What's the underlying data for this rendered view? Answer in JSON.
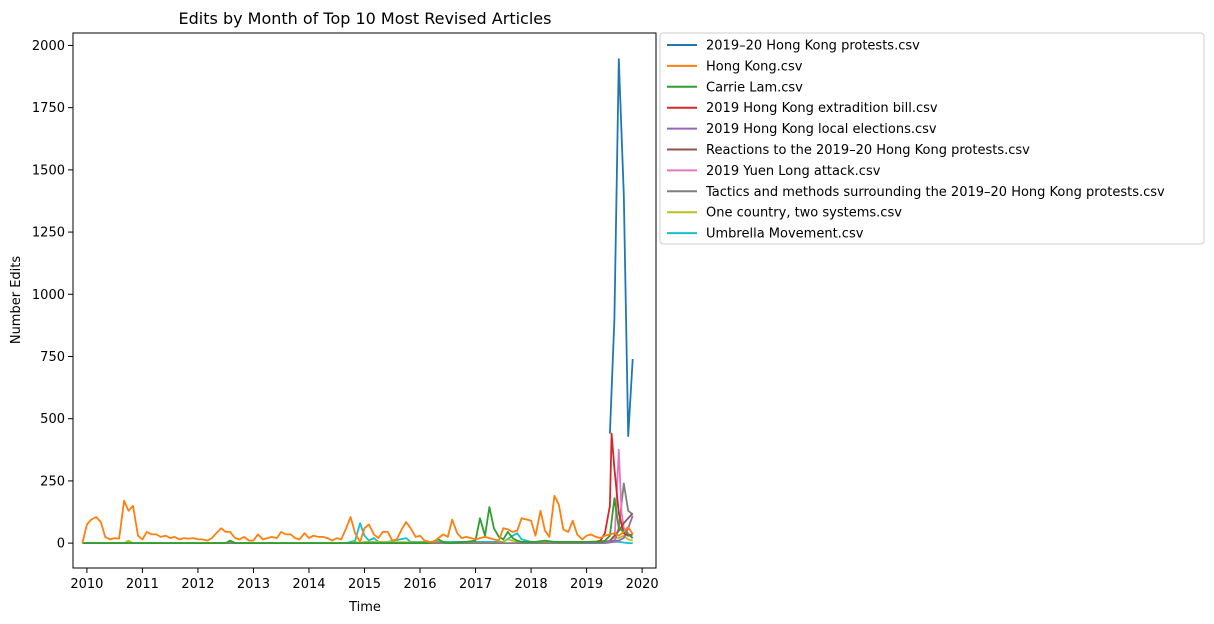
{
  "chart_data": {
    "type": "line",
    "title": "Edits by Month of Top 10 Most Revised Articles",
    "xlabel": "Time",
    "ylabel": "Number Edits",
    "xlim": [
      2009.75,
      2020.25
    ],
    "ylim": [
      -100,
      2050
    ],
    "x_ticks": [
      2010,
      2011,
      2012,
      2013,
      2014,
      2015,
      2016,
      2017,
      2018,
      2019,
      2020
    ],
    "y_ticks": [
      0,
      250,
      500,
      750,
      1000,
      1250,
      1500,
      1750,
      2000
    ],
    "grid": false,
    "legend_position": "outside-right",
    "series": [
      {
        "name": "2019–20 Hong Kong protests.csv",
        "color": "#1f77b4",
        "points": [
          [
            2019.42,
            440
          ],
          [
            2019.5,
            900
          ],
          [
            2019.58,
            1945
          ],
          [
            2019.67,
            1400
          ],
          [
            2019.75,
            430
          ],
          [
            2019.83,
            740
          ]
        ]
      },
      {
        "name": "Hong Kong.csv",
        "color": "#ff7f0e",
        "points": [
          [
            2009.92,
            0
          ],
          [
            2010.0,
            75
          ],
          [
            2010.08,
            95
          ],
          [
            2010.17,
            105
          ],
          [
            2010.25,
            85
          ],
          [
            2010.33,
            25
          ],
          [
            2010.42,
            15
          ],
          [
            2010.5,
            20
          ],
          [
            2010.58,
            18
          ],
          [
            2010.67,
            170
          ],
          [
            2010.75,
            130
          ],
          [
            2010.83,
            150
          ],
          [
            2010.92,
            30
          ],
          [
            2011.0,
            15
          ],
          [
            2011.08,
            45
          ],
          [
            2011.17,
            35
          ],
          [
            2011.25,
            35
          ],
          [
            2011.33,
            25
          ],
          [
            2011.42,
            30
          ],
          [
            2011.5,
            20
          ],
          [
            2011.58,
            25
          ],
          [
            2011.67,
            15
          ],
          [
            2011.75,
            20
          ],
          [
            2011.83,
            18
          ],
          [
            2011.92,
            20
          ],
          [
            2012.0,
            15
          ],
          [
            2012.08,
            15
          ],
          [
            2012.17,
            10
          ],
          [
            2012.25,
            20
          ],
          [
            2012.33,
            40
          ],
          [
            2012.42,
            60
          ],
          [
            2012.5,
            45
          ],
          [
            2012.58,
            45
          ],
          [
            2012.67,
            20
          ],
          [
            2012.75,
            15
          ],
          [
            2012.83,
            25
          ],
          [
            2012.92,
            10
          ],
          [
            2013.0,
            10
          ],
          [
            2013.08,
            35
          ],
          [
            2013.17,
            15
          ],
          [
            2013.25,
            20
          ],
          [
            2013.33,
            25
          ],
          [
            2013.42,
            20
          ],
          [
            2013.5,
            45
          ],
          [
            2013.58,
            35
          ],
          [
            2013.67,
            35
          ],
          [
            2013.75,
            20
          ],
          [
            2013.83,
            15
          ],
          [
            2013.92,
            40
          ],
          [
            2014.0,
            20
          ],
          [
            2014.08,
            30
          ],
          [
            2014.17,
            25
          ],
          [
            2014.25,
            25
          ],
          [
            2014.33,
            20
          ],
          [
            2014.42,
            10
          ],
          [
            2014.5,
            20
          ],
          [
            2014.58,
            15
          ],
          [
            2014.67,
            60
          ],
          [
            2014.75,
            105
          ],
          [
            2014.83,
            40
          ],
          [
            2014.92,
            5
          ],
          [
            2015.0,
            60
          ],
          [
            2015.08,
            75
          ],
          [
            2015.17,
            35
          ],
          [
            2015.25,
            20
          ],
          [
            2015.33,
            45
          ],
          [
            2015.42,
            45
          ],
          [
            2015.5,
            10
          ],
          [
            2015.58,
            15
          ],
          [
            2015.67,
            55
          ],
          [
            2015.75,
            85
          ],
          [
            2015.83,
            60
          ],
          [
            2015.92,
            25
          ],
          [
            2016.0,
            30
          ],
          [
            2016.08,
            10
          ],
          [
            2016.17,
            5
          ],
          [
            2016.25,
            5
          ],
          [
            2016.33,
            20
          ],
          [
            2016.42,
            35
          ],
          [
            2016.5,
            25
          ],
          [
            2016.58,
            95
          ],
          [
            2016.67,
            40
          ],
          [
            2016.75,
            20
          ],
          [
            2016.83,
            25
          ],
          [
            2016.92,
            20
          ],
          [
            2017.0,
            15
          ],
          [
            2017.08,
            20
          ],
          [
            2017.17,
            25
          ],
          [
            2017.25,
            20
          ],
          [
            2017.33,
            15
          ],
          [
            2017.42,
            10
          ],
          [
            2017.5,
            60
          ],
          [
            2017.58,
            55
          ],
          [
            2017.67,
            45
          ],
          [
            2017.75,
            50
          ],
          [
            2017.83,
            100
          ],
          [
            2017.92,
            95
          ],
          [
            2018.0,
            90
          ],
          [
            2018.08,
            30
          ],
          [
            2018.17,
            130
          ],
          [
            2018.25,
            50
          ],
          [
            2018.33,
            25
          ],
          [
            2018.42,
            190
          ],
          [
            2018.5,
            155
          ],
          [
            2018.58,
            55
          ],
          [
            2018.67,
            45
          ],
          [
            2018.75,
            90
          ],
          [
            2018.83,
            35
          ],
          [
            2018.92,
            15
          ],
          [
            2019.0,
            30
          ],
          [
            2019.08,
            35
          ],
          [
            2019.17,
            25
          ],
          [
            2019.25,
            20
          ],
          [
            2019.33,
            30
          ],
          [
            2019.42,
            35
          ],
          [
            2019.5,
            40
          ],
          [
            2019.58,
            30
          ],
          [
            2019.67,
            45
          ],
          [
            2019.75,
            65
          ],
          [
            2019.83,
            35
          ]
        ]
      },
      {
        "name": "Carrie Lam.csv",
        "color": "#2ca02c",
        "points": [
          [
            2009.92,
            0
          ],
          [
            2012.5,
            0
          ],
          [
            2012.58,
            10
          ],
          [
            2012.67,
            0
          ],
          [
            2016.17,
            0
          ],
          [
            2016.33,
            15
          ],
          [
            2016.42,
            5
          ],
          [
            2016.5,
            0
          ],
          [
            2016.83,
            5
          ],
          [
            2017.0,
            10
          ],
          [
            2017.08,
            100
          ],
          [
            2017.17,
            30
          ],
          [
            2017.25,
            145
          ],
          [
            2017.33,
            60
          ],
          [
            2017.42,
            25
          ],
          [
            2017.5,
            15
          ],
          [
            2017.58,
            45
          ],
          [
            2017.67,
            20
          ],
          [
            2017.75,
            10
          ],
          [
            2017.83,
            5
          ],
          [
            2017.92,
            5
          ],
          [
            2018.0,
            5
          ],
          [
            2018.08,
            5
          ],
          [
            2018.25,
            10
          ],
          [
            2018.42,
            5
          ],
          [
            2018.58,
            5
          ],
          [
            2018.75,
            5
          ],
          [
            2019.0,
            5
          ],
          [
            2019.25,
            5
          ],
          [
            2019.33,
            10
          ],
          [
            2019.42,
            30
          ],
          [
            2019.5,
            180
          ],
          [
            2019.58,
            60
          ],
          [
            2019.67,
            45
          ],
          [
            2019.75,
            35
          ],
          [
            2019.83,
            20
          ]
        ]
      },
      {
        "name": "2019 Hong Kong extradition bill.csv",
        "color": "#d62728",
        "points": [
          [
            2019.17,
            5
          ],
          [
            2019.25,
            10
          ],
          [
            2019.33,
            40
          ],
          [
            2019.42,
            150
          ],
          [
            2019.45,
            440
          ],
          [
            2019.5,
            300
          ],
          [
            2019.58,
            120
          ],
          [
            2019.67,
            40
          ],
          [
            2019.75,
            30
          ],
          [
            2019.83,
            35
          ]
        ]
      },
      {
        "name": "2019 Hong Kong local elections.csv",
        "color": "#9467bd",
        "points": [
          [
            2018.92,
            0
          ],
          [
            2019.17,
            2
          ],
          [
            2019.33,
            5
          ],
          [
            2019.5,
            10
          ],
          [
            2019.58,
            10
          ],
          [
            2019.67,
            20
          ],
          [
            2019.75,
            60
          ],
          [
            2019.83,
            110
          ]
        ]
      },
      {
        "name": "Reactions to the 2019–20 Hong Kong protests.csv",
        "color": "#8c564b",
        "points": [
          [
            2019.42,
            10
          ],
          [
            2019.5,
            30
          ],
          [
            2019.58,
            50
          ],
          [
            2019.67,
            80
          ],
          [
            2019.75,
            100
          ],
          [
            2019.83,
            120
          ]
        ]
      },
      {
        "name": "2019 Yuen Long attack.csv",
        "color": "#e377c2",
        "points": [
          [
            2019.5,
            0
          ],
          [
            2019.58,
            375
          ],
          [
            2019.63,
            120
          ],
          [
            2019.67,
            60
          ],
          [
            2019.75,
            40
          ],
          [
            2019.83,
            20
          ]
        ]
      },
      {
        "name": "Tactics and methods surrounding the 2019–20 Hong Kong protests.csv",
        "color": "#7f7f7f",
        "points": [
          [
            2009.92,
            0
          ],
          [
            2019.33,
            0
          ],
          [
            2019.5,
            5
          ],
          [
            2019.58,
            60
          ],
          [
            2019.67,
            240
          ],
          [
            2019.75,
            130
          ],
          [
            2019.83,
            115
          ]
        ]
      },
      {
        "name": "One country, two systems.csv",
        "color": "#bcbd22",
        "points": [
          [
            2009.92,
            0
          ],
          [
            2010.67,
            0
          ],
          [
            2010.75,
            10
          ],
          [
            2010.83,
            0
          ],
          [
            2014.75,
            0
          ],
          [
            2014.83,
            5
          ],
          [
            2014.92,
            0
          ],
          [
            2015.0,
            5
          ],
          [
            2017.33,
            0
          ],
          [
            2017.5,
            5
          ],
          [
            2017.58,
            15
          ],
          [
            2017.67,
            10
          ],
          [
            2017.75,
            5
          ],
          [
            2018.0,
            5
          ],
          [
            2019.0,
            5
          ],
          [
            2019.42,
            10
          ],
          [
            2019.5,
            25
          ],
          [
            2019.58,
            20
          ],
          [
            2019.67,
            30
          ],
          [
            2019.75,
            15
          ],
          [
            2019.83,
            10
          ]
        ]
      },
      {
        "name": "Umbrella Movement.csv",
        "color": "#17becf",
        "points": [
          [
            2009.92,
            0
          ],
          [
            2014.67,
            0
          ],
          [
            2014.75,
            5
          ],
          [
            2014.83,
            10
          ],
          [
            2014.92,
            80
          ],
          [
            2015.0,
            30
          ],
          [
            2015.08,
            10
          ],
          [
            2015.17,
            20
          ],
          [
            2015.25,
            5
          ],
          [
            2015.42,
            5
          ],
          [
            2015.75,
            20
          ],
          [
            2015.83,
            5
          ],
          [
            2016.0,
            5
          ],
          [
            2017.5,
            5
          ],
          [
            2017.67,
            30
          ],
          [
            2017.75,
            40
          ],
          [
            2017.83,
            15
          ],
          [
            2018.0,
            5
          ],
          [
            2019.0,
            0
          ],
          [
            2019.42,
            5
          ],
          [
            2019.58,
            5
          ],
          [
            2019.75,
            0
          ],
          [
            2019.83,
            0
          ]
        ]
      }
    ]
  }
}
